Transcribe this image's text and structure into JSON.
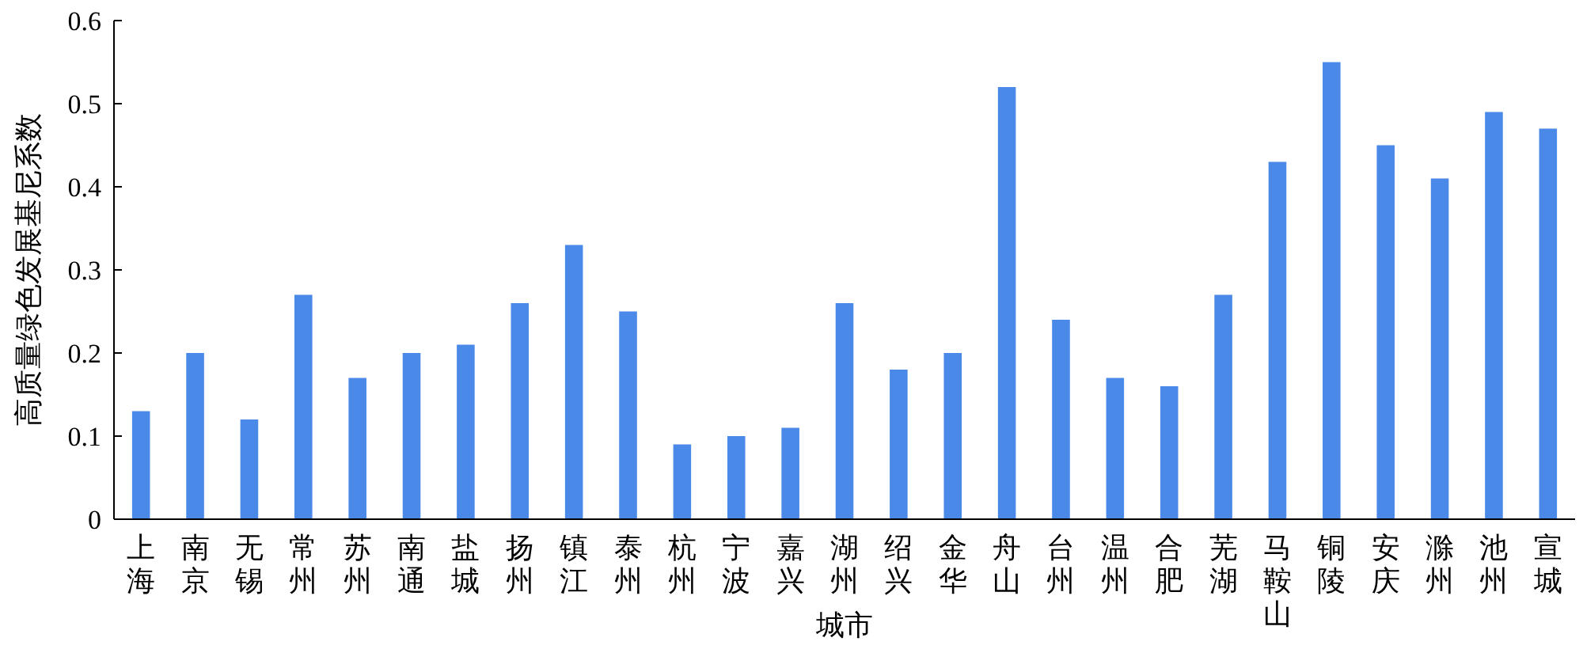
{
  "chart_data": {
    "type": "bar",
    "xlabel": "城市",
    "ylabel": "高质量绿色发展基尼系数",
    "categories": [
      "上海",
      "南京",
      "无锡",
      "常州",
      "苏州",
      "南通",
      "盐城",
      "扬州",
      "镇江",
      "泰州",
      "杭州",
      "宁波",
      "嘉兴",
      "湖州",
      "绍兴",
      "金华",
      "舟山",
      "台州",
      "温州",
      "合肥",
      "芜湖",
      "马鞍山",
      "铜陵",
      "安庆",
      "滁州",
      "池州",
      "宣城"
    ],
    "values": [
      0.13,
      0.2,
      0.12,
      0.27,
      0.17,
      0.2,
      0.21,
      0.26,
      0.33,
      0.25,
      0.09,
      0.1,
      0.11,
      0.26,
      0.18,
      0.2,
      0.52,
      0.24,
      0.17,
      0.16,
      0.27,
      0.43,
      0.55,
      0.45,
      0.41,
      0.49,
      0.47
    ],
    "color": "#4a89e8",
    "ylim": [
      0,
      0.6
    ],
    "yticks": [
      0,
      0.1,
      0.2,
      0.3,
      0.4,
      0.5,
      0.6
    ],
    "grid": false,
    "legend": false
  }
}
